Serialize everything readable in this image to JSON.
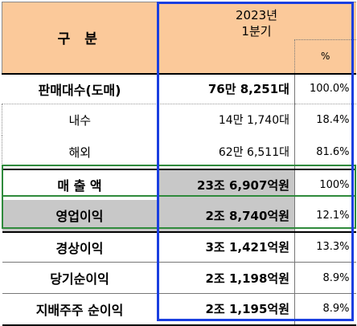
{
  "header": {
    "label": "구 분",
    "period_line1": "2023년",
    "period_line2": "1분기",
    "pct": "%"
  },
  "rows": [
    {
      "label": "판매대수(도매)",
      "value": "76만 8,251대",
      "pct": "100.0%"
    },
    {
      "label": "내수",
      "value": "14만 1,740대",
      "pct": "18.4%"
    },
    {
      "label": "해외",
      "value": "62만 6,511대",
      "pct": "81.6%"
    },
    {
      "label": "매 출 액",
      "value": "23조 6,907억원",
      "pct": "100%"
    },
    {
      "label": "영업이익",
      "value": "2조 8,740억원",
      "pct": "12.1%"
    },
    {
      "label": "경상이익",
      "value": "3조 1,421억원",
      "pct": "13.3%"
    },
    {
      "label": "당기순이익",
      "value": "2조 1,198억원",
      "pct": "8.9%"
    },
    {
      "label": "지배주주 순이익",
      "value": "2조 1,195억원",
      "pct": "8.9%"
    }
  ]
}
